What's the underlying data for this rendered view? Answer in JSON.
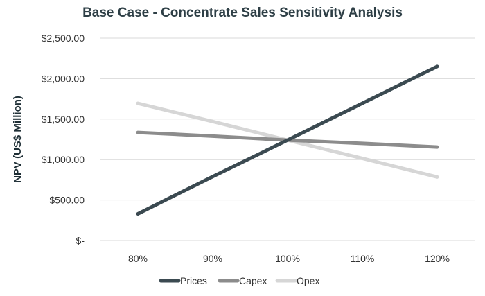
{
  "chart_data": {
    "type": "line",
    "title": "Base Case - Concentrate Sales Sensitivity Analysis",
    "xlabel": "",
    "ylabel": "NPV (US$ Million)",
    "categories": [
      "80%",
      "90%",
      "100%",
      "110%",
      "120%"
    ],
    "ylim": [
      0,
      2500
    ],
    "y_ticks": [
      0,
      500,
      1000,
      1500,
      2000,
      2500
    ],
    "y_tick_labels": [
      "$-",
      "$500.00",
      "$1,000.00",
      "$1,500.00",
      "$2,000.00",
      "$2,500.00"
    ],
    "grid": "horizontal",
    "legend_position": "bottom",
    "series": [
      {
        "name": "Prices",
        "color": "#3b4a51",
        "values": [
          330,
          790,
          1240,
          1695,
          2150
        ]
      },
      {
        "name": "Capex",
        "color": "#8c8c8c",
        "values": [
          1335,
          1290,
          1240,
          1200,
          1155
        ]
      },
      {
        "name": "Opex",
        "color": "#d6d6d6",
        "values": [
          1695,
          1470,
          1240,
          1015,
          785
        ]
      }
    ]
  }
}
